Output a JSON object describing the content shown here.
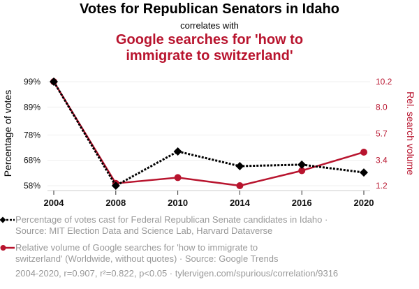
{
  "header": {
    "title": "Votes for Republican Senators in Idaho",
    "subtitle": "correlates with",
    "title2_line1": "Google searches for 'how to",
    "title2_line2": "immigrate to switzerland'"
  },
  "chart_data": {
    "type": "line",
    "title": "Votes for Republican Senators in Idaho correlates with Google searches for 'how to immigrate to switzerland'",
    "categories": [
      "2004",
      "2008",
      "2010",
      "2014",
      "2016",
      "2020"
    ],
    "series": [
      {
        "name": "Percentage of votes cast for Federal Republican Senate candidates in Idaho",
        "axis": "left",
        "color": "#000000",
        "style": "dotted",
        "marker": "diamond",
        "values": [
          99.0,
          58.0,
          71.5,
          65.7,
          66.3,
          63.2
        ]
      },
      {
        "name": "Relative volume of Google searches for 'how to immigrate to switzerland'",
        "axis": "right",
        "color": "#b8142e",
        "style": "solid",
        "marker": "circle",
        "values": [
          10.2,
          1.4,
          1.9,
          1.2,
          2.5,
          4.1
        ]
      }
    ],
    "left_axis": {
      "label": "Percentage of votes",
      "ticks": [
        "99%",
        "89%",
        "78%",
        "68%",
        "58%"
      ],
      "tick_values": [
        99,
        89,
        78,
        68,
        58
      ],
      "ylim": [
        58,
        99
      ]
    },
    "right_axis": {
      "label": "Rel. search volume",
      "ticks": [
        "10.2",
        "8.0",
        "5.7",
        "3.4",
        "1.2"
      ],
      "tick_values": [
        10.2,
        8.0,
        5.7,
        3.4,
        1.2
      ],
      "ylim": [
        1.2,
        10.2
      ]
    },
    "xlabel": "",
    "grid": true,
    "legend_position": "bottom"
  },
  "legend": {
    "series1_line1": "Percentage of votes cast for Federal Republican Senate candidates in Idaho ·",
    "series1_line2": "Source: MIT Election Data and Science Lab, Harvard Dataverse",
    "series2_line1": "Relative volume of Google searches for 'how to immigrate to",
    "series2_line2": "switzerland' (Worldwide, without quotes) · Source: Google Trends"
  },
  "footer": "2004-2020, r=0.907, r²=0.822, p<0.05 · tylervigen.com/spurious/correlation/9316"
}
